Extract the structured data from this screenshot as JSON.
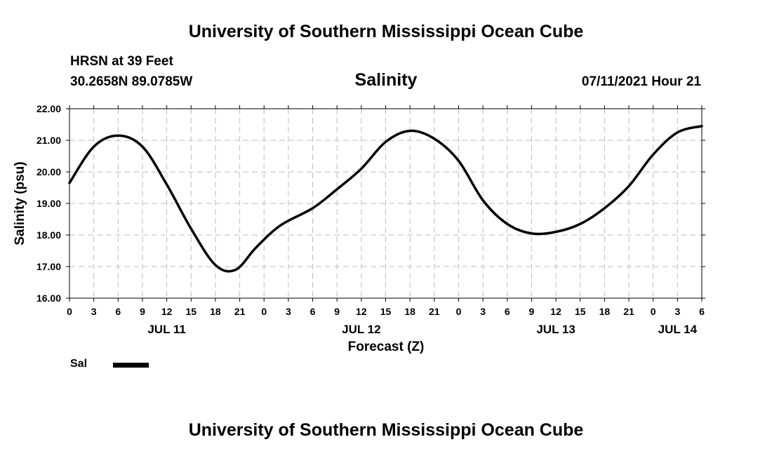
{
  "header": {
    "title": "University of Southern Mississippi Ocean Cube",
    "station": "HRSN at 39 Feet",
    "coordinates": "30.2658N  89.0785W",
    "timestamp": "07/11/2021 Hour 21"
  },
  "footer": {
    "title": "University of Southern Mississippi Ocean Cube"
  },
  "legend": {
    "label": "Sal"
  },
  "chart_data": {
    "type": "line",
    "title": "Salinity",
    "xlabel": "Forecast (Z)",
    "ylabel": "Salinity (psu)",
    "ylim": [
      16,
      22
    ],
    "xlim": [
      0,
      78
    ],
    "grid": true,
    "legend_position": "bottom-left",
    "yticks": [
      16,
      17,
      18,
      19,
      20,
      21,
      22
    ],
    "ytick_labels": [
      "16.00",
      "17.00",
      "18.00",
      "19.00",
      "20.00",
      "21.00",
      "22.00"
    ],
    "xticks": [
      0,
      3,
      6,
      9,
      12,
      15,
      18,
      21,
      24,
      27,
      30,
      33,
      36,
      39,
      42,
      45,
      48,
      51,
      54,
      57,
      60,
      63,
      66,
      69,
      72,
      75,
      78
    ],
    "xtick_labels": [
      "0",
      "3",
      "6",
      "9",
      "12",
      "15",
      "18",
      "21",
      "0",
      "3",
      "6",
      "9",
      "12",
      "15",
      "18",
      "21",
      "0",
      "3",
      "6",
      "9",
      "12",
      "15",
      "18",
      "21",
      "0",
      "3",
      "6"
    ],
    "date_labels": [
      {
        "x": 12,
        "label": "JUL 11"
      },
      {
        "x": 36,
        "label": "JUL 12"
      },
      {
        "x": 60,
        "label": "JUL 13"
      },
      {
        "x": 75,
        "label": "JUL 14"
      }
    ],
    "series": [
      {
        "name": "Sal",
        "color": "#000000",
        "x": [
          0,
          3,
          6,
          9,
          12,
          15,
          18,
          20.5,
          23,
          26,
          30,
          33,
          36,
          39,
          42,
          45,
          48,
          51,
          54,
          57,
          60,
          63,
          66,
          69,
          72,
          75,
          78
        ],
        "values": [
          19.65,
          20.8,
          21.15,
          20.8,
          19.6,
          18.2,
          17.05,
          16.9,
          17.6,
          18.3,
          18.85,
          19.45,
          20.1,
          20.95,
          21.3,
          21.05,
          20.35,
          19.1,
          18.35,
          18.05,
          18.1,
          18.35,
          18.85,
          19.55,
          20.55,
          21.25,
          21.45
        ]
      }
    ]
  }
}
